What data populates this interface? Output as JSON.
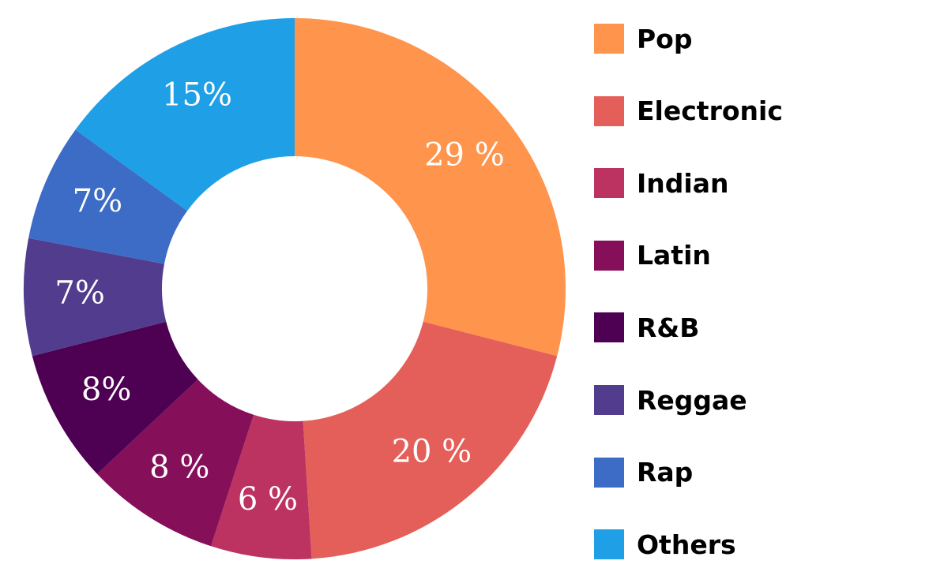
{
  "chart_data": {
    "type": "pie",
    "donut": true,
    "categories": [
      "Pop",
      "Electronic",
      "Indian",
      "Latin",
      "R&B",
      "Reggae",
      "Rap",
      "Others"
    ],
    "values": [
      29,
      20,
      6,
      8,
      8,
      7,
      7,
      15
    ],
    "data_labels": [
      "29 %",
      "20 %",
      "6 %",
      "8 %",
      "8%",
      "7%",
      "7%",
      "15%"
    ],
    "colors": [
      "#FF944D",
      "#E45F59",
      "#BC3260",
      "#860F5A",
      "#4E0052",
      "#513C8D",
      "#3D6CC7",
      "#1E9FE6"
    ],
    "title": "",
    "legend_position": "right",
    "start_angle": "top, clockwise"
  }
}
